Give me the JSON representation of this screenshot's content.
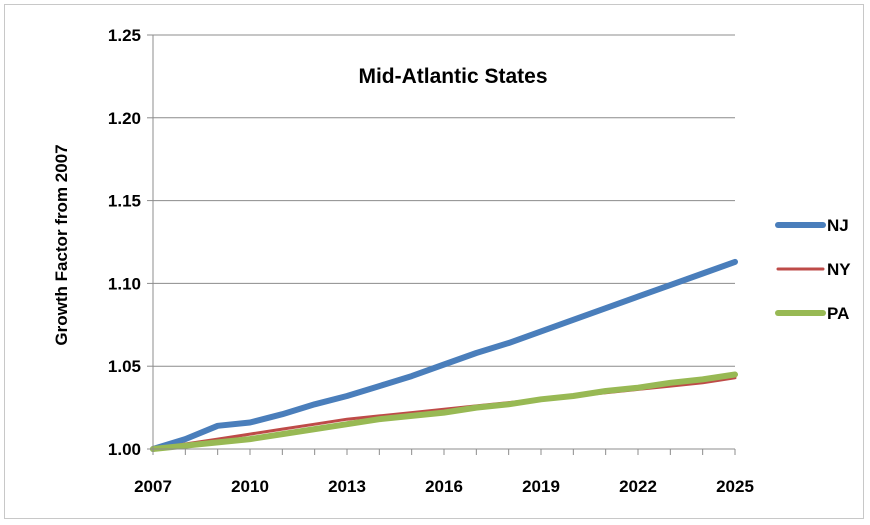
{
  "chart_data": {
    "type": "line",
    "title": "Mid-Atlantic States",
    "xlabel": "",
    "ylabel": "Growth Factor from 2007",
    "xlim": [
      2007,
      2025
    ],
    "ylim": [
      1.0,
      1.25
    ],
    "x_ticks": [
      2007,
      2010,
      2013,
      2016,
      2019,
      2022,
      2025
    ],
    "y_ticks": [
      "1.00",
      "1.05",
      "1.10",
      "1.15",
      "1.20",
      "1.25"
    ],
    "grid": "horizontal",
    "legend_position": "right",
    "x": [
      2007,
      2008,
      2009,
      2010,
      2011,
      2012,
      2013,
      2014,
      2015,
      2016,
      2017,
      2018,
      2019,
      2020,
      2021,
      2022,
      2023,
      2024,
      2025
    ],
    "series": [
      {
        "name": "NJ",
        "color": "#4a7ebb",
        "values": [
          1.0,
          1.006,
          1.014,
          1.016,
          1.021,
          1.027,
          1.032,
          1.038,
          1.044,
          1.051,
          1.058,
          1.064,
          1.071,
          1.078,
          1.085,
          1.092,
          1.099,
          1.106,
          1.113
        ]
      },
      {
        "name": "NY",
        "color": "#be4b48",
        "values": [
          1.0,
          1.003,
          1.006,
          1.009,
          1.012,
          1.015,
          1.018,
          1.02,
          1.022,
          1.024,
          1.026,
          1.028,
          1.03,
          1.032,
          1.034,
          1.036,
          1.038,
          1.04,
          1.043
        ]
      },
      {
        "name": "PA",
        "color": "#98b954",
        "values": [
          1.0,
          1.002,
          1.004,
          1.006,
          1.009,
          1.012,
          1.015,
          1.018,
          1.02,
          1.022,
          1.025,
          1.027,
          1.03,
          1.032,
          1.035,
          1.037,
          1.04,
          1.042,
          1.045
        ]
      }
    ]
  }
}
